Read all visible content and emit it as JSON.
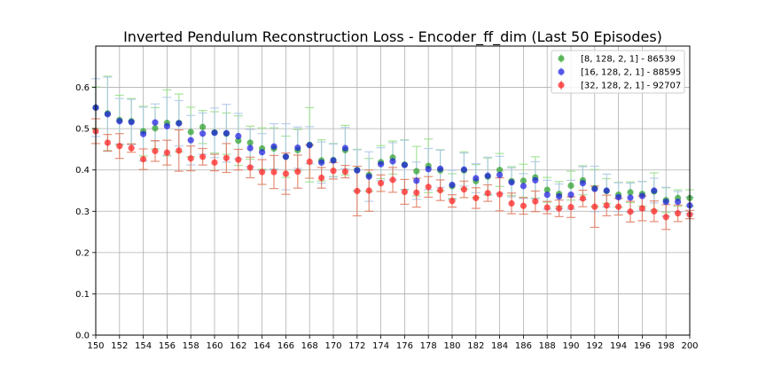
{
  "chart_data": {
    "type": "scatter",
    "title": "Inverted Pendulum Reconstruction Loss - Encoder_ff_dim (Last 50 Episodes)",
    "xlabel": "",
    "ylabel": "",
    "xlim": [
      150,
      200
    ],
    "ylim": [
      0.0,
      0.7
    ],
    "grid": true,
    "legend_position": "top-right",
    "x_ticks": [
      150,
      152,
      154,
      156,
      158,
      160,
      162,
      164,
      166,
      168,
      170,
      172,
      174,
      176,
      178,
      180,
      182,
      184,
      186,
      188,
      190,
      192,
      194,
      196,
      198,
      200
    ],
    "x_tick_labels": [
      "150",
      "152",
      "154",
      "156",
      "158",
      "160",
      "162",
      "164",
      "166",
      "168",
      "170",
      "172",
      "174",
      "176",
      "178",
      "180",
      "182",
      "184",
      "186",
      "188",
      "190",
      "192",
      "194",
      "196",
      "198",
      "200"
    ],
    "y_ticks": [
      0.0,
      0.1,
      0.2,
      0.3,
      0.4,
      0.5,
      0.6
    ],
    "y_tick_labels": [
      "0.0",
      "0.1",
      "0.2",
      "0.3",
      "0.4",
      "0.5",
      "0.6"
    ],
    "x": [
      150,
      151,
      152,
      153,
      154,
      155,
      156,
      157,
      158,
      159,
      160,
      161,
      162,
      163,
      164,
      165,
      166,
      167,
      168,
      169,
      170,
      171,
      172,
      173,
      174,
      175,
      176,
      177,
      178,
      179,
      180,
      181,
      182,
      183,
      184,
      185,
      186,
      187,
      188,
      189,
      190,
      191,
      192,
      193,
      194,
      195,
      196,
      197,
      198,
      199,
      200
    ],
    "series": [
      {
        "name": "[8, 128, 2, 1] - 86539",
        "color": "#2ca02c",
        "errcolor": "#98df8a",
        "values": [
          0.551,
          0.537,
          0.521,
          0.518,
          0.494,
          0.501,
          0.514,
          0.514,
          0.492,
          0.504,
          0.491,
          0.488,
          0.471,
          0.466,
          0.452,
          0.452,
          0.432,
          0.448,
          0.461,
          0.423,
          0.424,
          0.448,
          0.4,
          0.388,
          0.419,
          0.43,
          0.413,
          0.397,
          0.41,
          0.399,
          0.361,
          0.399,
          0.373,
          0.384,
          0.4,
          0.373,
          0.374,
          0.382,
          0.352,
          0.342,
          0.362,
          0.375,
          0.356,
          0.349,
          0.34,
          0.346,
          0.342,
          0.348,
          0.327,
          0.332,
          0.332
        ],
        "errors": [
          0.05,
          0.09,
          0.06,
          0.055,
          0.06,
          0.05,
          0.08,
          0.07,
          0.06,
          0.04,
          0.05,
          0.05,
          0.06,
          0.04,
          0.05,
          0.05,
          0.05,
          0.05,
          0.09,
          0.05,
          0.04,
          0.06,
          0.05,
          0.04,
          0.04,
          0.04,
          0.06,
          0.06,
          0.065,
          0.05,
          0.03,
          0.045,
          0.04,
          0.045,
          0.04,
          0.035,
          0.04,
          0.05,
          0.03,
          0.03,
          0.035,
          0.035,
          0.045,
          0.03,
          0.03,
          0.025,
          0.03,
          0.045,
          0.03,
          0.02,
          0.02
        ]
      },
      {
        "name": "[16, 128, 2, 1] - 88595",
        "color": "#1f1fe0",
        "errcolor": "#aec7e8",
        "values": [
          0.551,
          0.535,
          0.518,
          0.516,
          0.487,
          0.515,
          0.506,
          0.513,
          0.472,
          0.488,
          0.49,
          0.489,
          0.482,
          0.453,
          0.443,
          0.457,
          0.432,
          0.454,
          0.46,
          0.418,
          0.423,
          0.453,
          0.399,
          0.384,
          0.414,
          0.421,
          0.412,
          0.374,
          0.402,
          0.403,
          0.364,
          0.401,
          0.38,
          0.386,
          0.388,
          0.37,
          0.361,
          0.375,
          0.34,
          0.336,
          0.34,
          0.368,
          0.354,
          0.35,
          0.334,
          0.333,
          0.337,
          0.35,
          0.323,
          0.323,
          0.314
        ],
        "errors": [
          0.07,
          0.09,
          0.055,
          0.055,
          0.065,
          0.045,
          0.07,
          0.055,
          0.06,
          0.05,
          0.06,
          0.07,
          0.055,
          0.045,
          0.045,
          0.055,
          0.08,
          0.05,
          0.045,
          0.05,
          0.04,
          0.05,
          0.05,
          0.06,
          0.04,
          0.045,
          0.06,
          0.045,
          0.05,
          0.045,
          0.035,
          0.04,
          0.035,
          0.045,
          0.045,
          0.035,
          0.03,
          0.045,
          0.035,
          0.03,
          0.035,
          0.04,
          0.055,
          0.04,
          0.035,
          0.035,
          0.035,
          0.03,
          0.035,
          0.025,
          0.02
        ]
      },
      {
        "name": "[32, 128, 2, 1] - 92707",
        "color": "#ff2020",
        "errcolor": "#e07b60",
        "values": [
          0.494,
          0.466,
          0.458,
          0.453,
          0.426,
          0.446,
          0.442,
          0.447,
          0.428,
          0.432,
          0.418,
          0.429,
          0.425,
          0.406,
          0.395,
          0.395,
          0.391,
          0.396,
          0.42,
          0.381,
          0.398,
          0.396,
          0.349,
          0.35,
          0.368,
          0.376,
          0.347,
          0.345,
          0.359,
          0.351,
          0.325,
          0.353,
          0.332,
          0.344,
          0.341,
          0.319,
          0.313,
          0.324,
          0.309,
          0.307,
          0.31,
          0.331,
          0.311,
          0.314,
          0.311,
          0.299,
          0.307,
          0.3,
          0.286,
          0.295,
          0.292
        ],
        "errors": [
          0.03,
          0.02,
          0.03,
          0.01,
          0.025,
          0.025,
          0.03,
          0.05,
          0.03,
          0.02,
          0.02,
          0.035,
          0.025,
          0.025,
          0.03,
          0.04,
          0.05,
          0.04,
          0.04,
          0.025,
          0.02,
          0.015,
          0.06,
          0.05,
          0.02,
          0.03,
          0.03,
          0.035,
          0.025,
          0.025,
          0.015,
          0.02,
          0.025,
          0.02,
          0.04,
          0.025,
          0.02,
          0.025,
          0.015,
          0.02,
          0.025,
          0.02,
          0.05,
          0.025,
          0.02,
          0.025,
          0.03,
          0.025,
          0.03,
          0.02,
          0.01
        ]
      }
    ]
  }
}
